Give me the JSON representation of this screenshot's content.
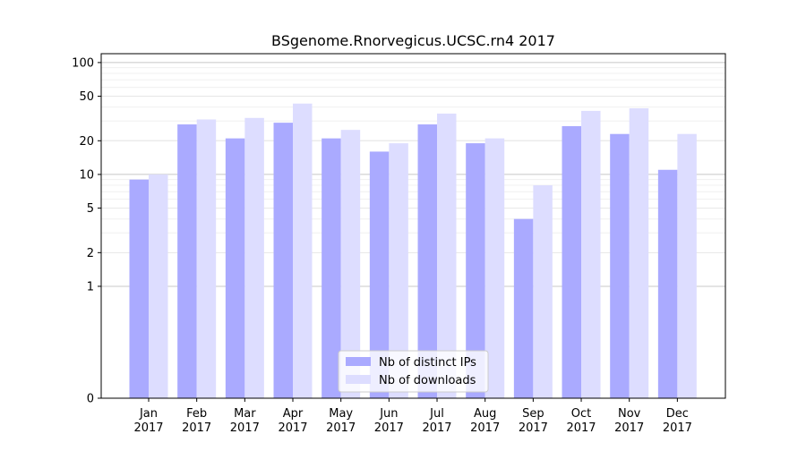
{
  "chart_data": {
    "type": "bar",
    "title": "BSgenome.Rnorvegicus.UCSC.rn4 2017",
    "xlabel": "",
    "ylabel": "",
    "yscale": "symlog",
    "ylim": [
      0,
      120
    ],
    "yticks": [
      0,
      1,
      2,
      5,
      10,
      20,
      50,
      100
    ],
    "ytick_labels": [
      "0",
      "1",
      "2",
      "5",
      "10",
      "20",
      "50",
      "100"
    ],
    "categories": [
      "Jan\n2017",
      "Feb\n2017",
      "Mar\n2017",
      "Apr\n2017",
      "May\n2017",
      "Jun\n2017",
      "Jul\n2017",
      "Aug\n2017",
      "Sep\n2017",
      "Oct\n2017",
      "Nov\n2017",
      "Dec\n2017"
    ],
    "series": [
      {
        "name": "Nb of distinct IPs",
        "color": "#aaaaff",
        "values": [
          9,
          28,
          21,
          29,
          21,
          16,
          28,
          19,
          4,
          27,
          23,
          11
        ]
      },
      {
        "name": "Nb of downloads",
        "color": "#ddddff",
        "values": [
          10,
          31,
          32,
          43,
          25,
          19,
          35,
          21,
          8,
          37,
          39,
          23
        ]
      }
    ],
    "grid": true,
    "legend": {
      "position": "lower center"
    }
  }
}
